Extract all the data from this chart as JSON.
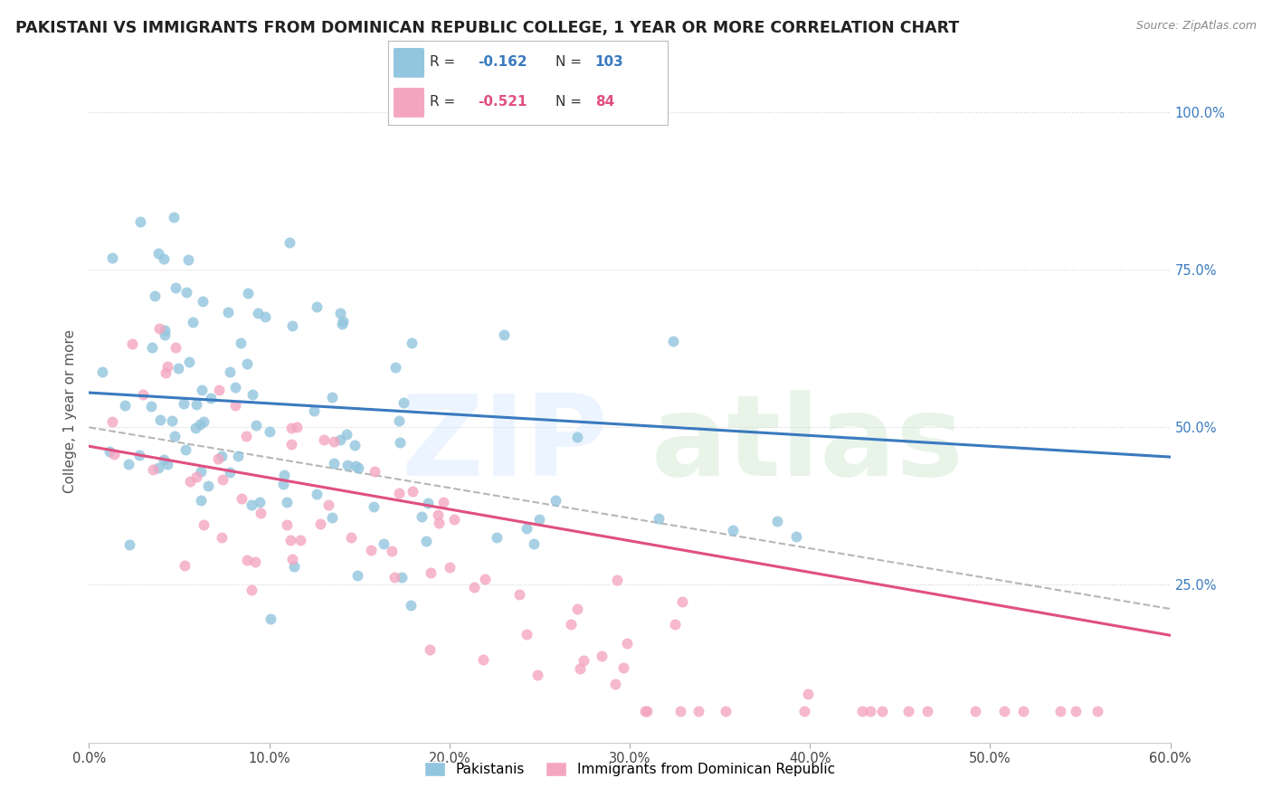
{
  "title": "PAKISTANI VS IMMIGRANTS FROM DOMINICAN REPUBLIC COLLEGE, 1 YEAR OR MORE CORRELATION CHART",
  "source": "Source: ZipAtlas.com",
  "ylabel": "College, 1 year or more",
  "x_min": 0.0,
  "x_max": 0.6,
  "y_min": 0.0,
  "y_max": 1.05,
  "y_ticks": [
    0.25,
    0.5,
    0.75,
    1.0
  ],
  "y_tick_labels": [
    "25.0%",
    "50.0%",
    "75.0%",
    "100.0%"
  ],
  "color_blue": "#92c5de",
  "color_pink": "#f4a6c0",
  "color_blue_line": "#3a7abf",
  "color_pink_line": "#e05080",
  "color_dashed": "#aaaaaa",
  "legend_r1": "-0.162",
  "legend_n1": "103",
  "legend_r2": "-0.521",
  "legend_n2": "84",
  "watermark_zip_color": "#d8e8f0",
  "watermark_atlas_color": "#c8d8c0"
}
